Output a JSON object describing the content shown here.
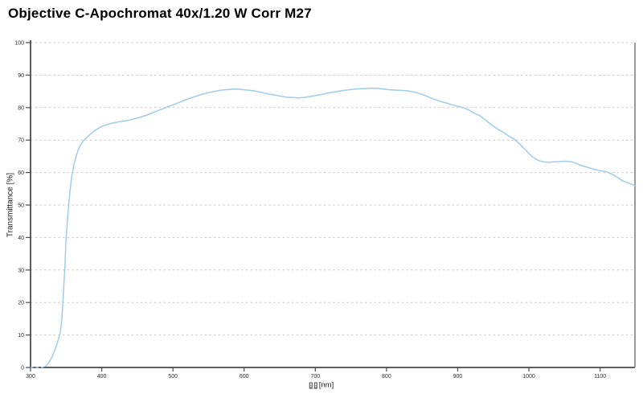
{
  "title": "Objective C-Apochromat 40x/1.20 W Corr M27",
  "yaxis": {
    "label": "Transmittance [%]",
    "tick_labels": [
      "0",
      "10",
      "20",
      "30",
      "40",
      "50",
      "60",
      "70",
      "80",
      "90",
      "100"
    ]
  },
  "xaxis": {
    "tick_labels": [
      "300",
      "400",
      "500",
      "600",
      "700",
      "800",
      "900",
      "1000",
      "1100"
    ],
    "unit_label": "[nm]",
    "missing_glyph_boxes": 2
  },
  "colors": {
    "background": "#ffffff",
    "title_text": "#000000",
    "axis_line": "#4a4a4a",
    "right_border": "#808080",
    "tick_text": "#2b2b2b",
    "gridline": "#c7c7c7",
    "curve": "#9ecdea"
  },
  "chart_data": {
    "type": "line",
    "title": "Objective C-Apochromat 40x/1.20 W Corr M27",
    "xlabel": "λ [nm]",
    "ylabel": "Transmittance [%]",
    "x_range": [
      300,
      1149
    ],
    "y_range": [
      0,
      100
    ],
    "x_ticks": [
      300,
      400,
      500,
      600,
      700,
      800,
      900,
      1000,
      1100
    ],
    "y_ticks": [
      0,
      10,
      20,
      30,
      40,
      50,
      60,
      70,
      80,
      90,
      100
    ],
    "grid": "horizontal-dashed",
    "legend": "none",
    "series": [
      {
        "name": "transmittance",
        "color": "#9ecdea",
        "dashed_below_x": 321,
        "points": [
          [
            300,
            0
          ],
          [
            308,
            0
          ],
          [
            314,
            0
          ],
          [
            318,
            0.1
          ],
          [
            321,
            0.4
          ],
          [
            324,
            1
          ],
          [
            327,
            2
          ],
          [
            330,
            3.2
          ],
          [
            333,
            4.8
          ],
          [
            336,
            6.5
          ],
          [
            339,
            8.5
          ],
          [
            342,
            11
          ],
          [
            344,
            15
          ],
          [
            346,
            22
          ],
          [
            348,
            30
          ],
          [
            350,
            40
          ],
          [
            352,
            46
          ],
          [
            354,
            51
          ],
          [
            356,
            55.5
          ],
          [
            358,
            59
          ],
          [
            361,
            62.5
          ],
          [
            364,
            65
          ],
          [
            367,
            67
          ],
          [
            370,
            68.4
          ],
          [
            373,
            69.4
          ],
          [
            376,
            70.2
          ],
          [
            380,
            71
          ],
          [
            385,
            72
          ],
          [
            390,
            72.9
          ],
          [
            395,
            73.6
          ],
          [
            400,
            74.2
          ],
          [
            406,
            74.7
          ],
          [
            412,
            75.1
          ],
          [
            419,
            75.4
          ],
          [
            426,
            75.7
          ],
          [
            433,
            75.9
          ],
          [
            440,
            76.2
          ],
          [
            447,
            76.6
          ],
          [
            454,
            77
          ],
          [
            461,
            77.5
          ],
          [
            468,
            78.1
          ],
          [
            475,
            78.7
          ],
          [
            482,
            79.3
          ],
          [
            489,
            79.9
          ],
          [
            496,
            80.5
          ],
          [
            503,
            81.1
          ],
          [
            510,
            81.7
          ],
          [
            517,
            82.3
          ],
          [
            524,
            82.9
          ],
          [
            531,
            83.4
          ],
          [
            538,
            83.9
          ],
          [
            545,
            84.3
          ],
          [
            552,
            84.7
          ],
          [
            559,
            85
          ],
          [
            566,
            85.3
          ],
          [
            573,
            85.5
          ],
          [
            580,
            85.6
          ],
          [
            588,
            85.7
          ],
          [
            596,
            85.6
          ],
          [
            604,
            85.4
          ],
          [
            612,
            85.2
          ],
          [
            620,
            84.9
          ],
          [
            628,
            84.5
          ],
          [
            636,
            84.1
          ],
          [
            644,
            83.8
          ],
          [
            652,
            83.5
          ],
          [
            660,
            83.2
          ],
          [
            668,
            83.1
          ],
          [
            676,
            83
          ],
          [
            684,
            83.1
          ],
          [
            692,
            83.4
          ],
          [
            700,
            83.7
          ],
          [
            708,
            84
          ],
          [
            716,
            84.4
          ],
          [
            724,
            84.7
          ],
          [
            732,
            85
          ],
          [
            740,
            85.3
          ],
          [
            748,
            85.5
          ],
          [
            756,
            85.7
          ],
          [
            764,
            85.8
          ],
          [
            772,
            85.9
          ],
          [
            780,
            86
          ],
          [
            788,
            85.9
          ],
          [
            796,
            85.7
          ],
          [
            804,
            85.5
          ],
          [
            812,
            85.4
          ],
          [
            820,
            85.3
          ],
          [
            828,
            85.2
          ],
          [
            836,
            84.9
          ],
          [
            844,
            84.5
          ],
          [
            852,
            83.9
          ],
          [
            860,
            83.2
          ],
          [
            868,
            82.5
          ],
          [
            876,
            81.9
          ],
          [
            884,
            81.4
          ],
          [
            892,
            80.9
          ],
          [
            900,
            80.4
          ],
          [
            908,
            80
          ],
          [
            916,
            79.2
          ],
          [
            924,
            78.2
          ],
          [
            932,
            77.4
          ],
          [
            940,
            76
          ],
          [
            948,
            74.6
          ],
          [
            956,
            73.4
          ],
          [
            964,
            72.4
          ],
          [
            972,
            71.2
          ],
          [
            980,
            70.2
          ],
          [
            988,
            68.6
          ],
          [
            996,
            66.8
          ],
          [
            1002,
            65.4
          ],
          [
            1008,
            64.4
          ],
          [
            1014,
            63.7
          ],
          [
            1020,
            63.3
          ],
          [
            1028,
            63.2
          ],
          [
            1036,
            63.3
          ],
          [
            1044,
            63.4
          ],
          [
            1052,
            63.5
          ],
          [
            1060,
            63.3
          ],
          [
            1068,
            62.7
          ],
          [
            1076,
            62
          ],
          [
            1084,
            61.5
          ],
          [
            1092,
            61
          ],
          [
            1100,
            60.6
          ],
          [
            1108,
            60.3
          ],
          [
            1114,
            59.8
          ],
          [
            1120,
            59.1
          ],
          [
            1126,
            58.3
          ],
          [
            1132,
            57.4
          ],
          [
            1138,
            56.9
          ],
          [
            1144,
            56.4
          ],
          [
            1149,
            56
          ]
        ]
      }
    ]
  }
}
